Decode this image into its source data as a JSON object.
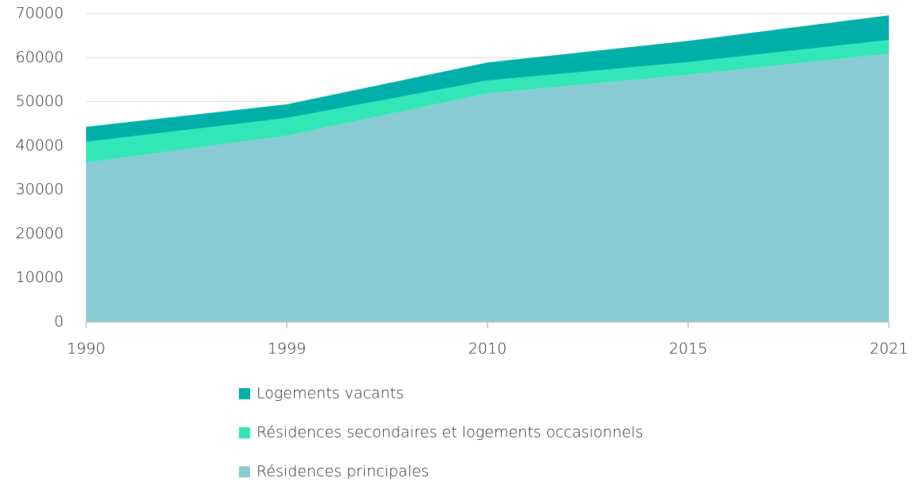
{
  "chart_data": {
    "type": "stacked-area",
    "categories": [
      "1990",
      "1999",
      "2010",
      "2015",
      "2021"
    ],
    "series": [
      {
        "name": "Résidences principales",
        "color": "#88cbd2",
        "values": [
          36200,
          42300,
          51900,
          56100,
          60900
        ]
      },
      {
        "name": "Résidences secondaires et logements occasionnels",
        "color": "#33e6b8",
        "values": [
          4700,
          4000,
          2900,
          2900,
          3100
        ]
      },
      {
        "name": "Logements vacants",
        "color": "#00b0a8",
        "values": [
          3400,
          3100,
          4100,
          4800,
          5600
        ]
      }
    ],
    "ylim": [
      0,
      70000
    ],
    "yticks": [
      0,
      10000,
      20000,
      30000,
      40000,
      50000,
      60000,
      70000
    ],
    "grid": true,
    "legend": "bottom"
  }
}
